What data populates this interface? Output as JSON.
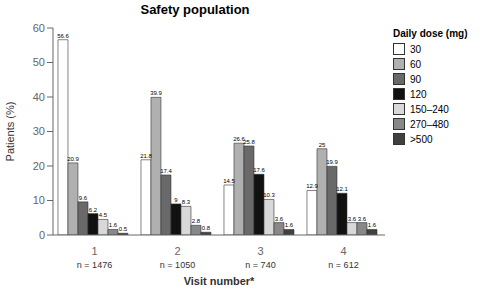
{
  "chart_data": {
    "type": "bar",
    "title": "Safety population",
    "xlabel": "Visit number*",
    "ylabel": "Patients (%)",
    "categories": [
      "1",
      "2",
      "3",
      "4"
    ],
    "annotations": [
      "n = 1476",
      "n = 1050",
      "n = 740",
      "n = 612"
    ],
    "legend_title": "Daily dose (mg)",
    "series": [
      {
        "name": "30",
        "color": "#ffffff",
        "values": [
          56.6,
          21.8,
          14.5,
          12.9
        ]
      },
      {
        "name": "60",
        "color": "#b0b0b0",
        "values": [
          20.9,
          39.9,
          26.6,
          25.0
        ]
      },
      {
        "name": "90",
        "color": "#696969",
        "values": [
          9.6,
          17.4,
          25.8,
          19.9
        ]
      },
      {
        "name": "120",
        "color": "#111111",
        "values": [
          6.2,
          9.0,
          17.6,
          12.1
        ]
      },
      {
        "name": "150–240",
        "color": "#d8d8d8",
        "values": [
          4.5,
          8.3,
          10.3,
          3.6
        ]
      },
      {
        "name": "270–480",
        "color": "#888888",
        "values": [
          1.6,
          2.8,
          3.6,
          3.6
        ]
      },
      {
        "name": ">500",
        "color": "#404040",
        "values": [
          0.5,
          0.8,
          1.6,
          1.6
        ]
      }
    ],
    "ylim": [
      0,
      60
    ],
    "yticks": [
      0,
      10,
      20,
      30,
      40,
      50,
      60
    ],
    "grid": false,
    "legend": "right",
    "data_labels": true
  }
}
